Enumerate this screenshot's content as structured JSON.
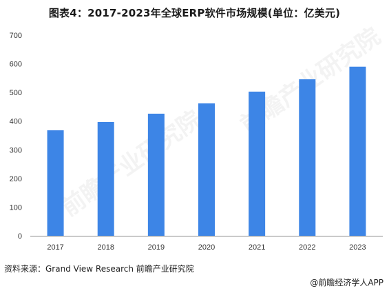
{
  "title": "图表4：2017-2023年全球ERP软件市场规模(单位：亿美元)",
  "source": "资料来源：Grand View Research 前瞻产业研究院",
  "footer": "@前瞻经济学人APP",
  "watermark": "前瞻产业研究院",
  "colors": {
    "bar": "#3d85e6",
    "axis": "#888888",
    "text": "#333333"
  },
  "chart_data": {
    "type": "bar",
    "categories": [
      "2017",
      "2018",
      "2019",
      "2020",
      "2021",
      "2022",
      "2023"
    ],
    "values": [
      368,
      397,
      426,
      462,
      503,
      546,
      590
    ],
    "title": "图表4：2017-2023年全球ERP软件市场规模(单位：亿美元)",
    "xlabel": "",
    "ylabel": "",
    "ylim": [
      0,
      700
    ],
    "yticks": [
      0,
      100,
      200,
      300,
      400,
      500,
      600,
      700
    ],
    "grid": false,
    "legend": "none"
  }
}
